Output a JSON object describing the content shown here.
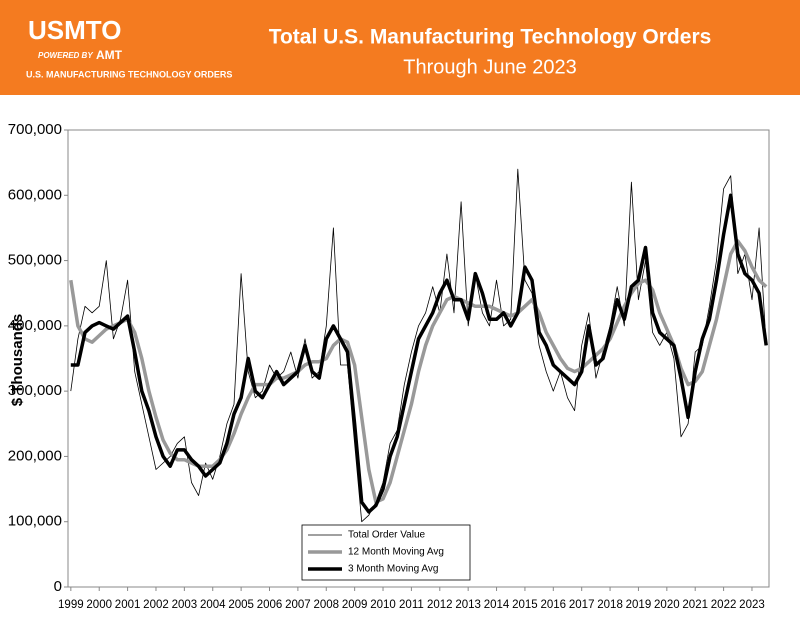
{
  "header": {
    "logo": "USMTO",
    "powered": "POWERED BY",
    "amt": "AMT",
    "tagline": "U.S. MANUFACTURING TECHNOLOGY ORDERS"
  },
  "chart_data": {
    "type": "line",
    "title": "Total U.S. Manufacturing Technology Orders",
    "subtitle": "Through June 2023",
    "y_label": "$ Thousands",
    "legend": "bottom",
    "x": [
      1999,
      1999.25,
      1999.5,
      1999.75,
      2000,
      2000.25,
      2000.5,
      2000.75,
      2001,
      2001.25,
      2001.5,
      2001.75,
      2002,
      2002.25,
      2002.5,
      2002.75,
      2003,
      2003.25,
      2003.5,
      2003.75,
      2004,
      2004.25,
      2004.5,
      2004.75,
      2005,
      2005.25,
      2005.5,
      2005.75,
      2006,
      2006.25,
      2006.5,
      2006.75,
      2007,
      2007.25,
      2007.5,
      2007.75,
      2008,
      2008.25,
      2008.5,
      2008.75,
      2009,
      2009.25,
      2009.5,
      2009.75,
      2010,
      2010.25,
      2010.5,
      2010.75,
      2011,
      2011.25,
      2011.5,
      2011.75,
      2012,
      2012.25,
      2012.5,
      2012.75,
      2013,
      2013.25,
      2013.5,
      2013.75,
      2014,
      2014.25,
      2014.5,
      2014.75,
      2015,
      2015.25,
      2015.5,
      2015.75,
      2016,
      2016.25,
      2016.5,
      2016.75,
      2017,
      2017.25,
      2017.5,
      2017.75,
      2018,
      2018.25,
      2018.5,
      2018.75,
      2019,
      2019.25,
      2019.5,
      2019.75,
      2020,
      2020.25,
      2020.5,
      2020.75,
      2021,
      2021.25,
      2021.5,
      2021.75,
      2022,
      2022.25,
      2022.5,
      2022.75,
      2023,
      2023.25,
      2023.5
    ],
    "series": [
      {
        "name": "Total Order Value",
        "color": "#000000",
        "width": 0.8,
        "values": [
          300000,
          380000,
          430000,
          420000,
          430000,
          500000,
          380000,
          410000,
          470000,
          330000,
          280000,
          230000,
          180000,
          190000,
          200000,
          220000,
          230000,
          160000,
          140000,
          190000,
          165000,
          200000,
          250000,
          280000,
          480000,
          330000,
          290000,
          300000,
          340000,
          320000,
          330000,
          360000,
          320000,
          380000,
          320000,
          330000,
          400000,
          550000,
          340000,
          340000,
          220000,
          100000,
          110000,
          130000,
          160000,
          220000,
          240000,
          310000,
          360000,
          400000,
          420000,
          460000,
          420000,
          510000,
          420000,
          590000,
          400000,
          480000,
          420000,
          400000,
          470000,
          400000,
          410000,
          640000,
          470000,
          450000,
          370000,
          330000,
          300000,
          330000,
          290000,
          270000,
          370000,
          420000,
          320000,
          360000,
          400000,
          460000,
          400000,
          620000,
          440000,
          500000,
          390000,
          370000,
          390000,
          350000,
          230000,
          250000,
          360000,
          370000,
          430000,
          500000,
          610000,
          630000,
          480000,
          510000,
          440000,
          550000,
          370000
        ]
      },
      {
        "name": "12 Month Moving Avg",
        "color": "#999999",
        "width": 3.5,
        "values": [
          470000,
          400000,
          380000,
          375000,
          385000,
          395000,
          400000,
          405000,
          410000,
          390000,
          350000,
          300000,
          260000,
          225000,
          205000,
          195000,
          195000,
          190000,
          185000,
          185000,
          185000,
          195000,
          210000,
          235000,
          265000,
          290000,
          310000,
          310000,
          310000,
          320000,
          320000,
          325000,
          330000,
          340000,
          345000,
          345000,
          350000,
          370000,
          380000,
          375000,
          340000,
          260000,
          180000,
          130000,
          135000,
          160000,
          200000,
          240000,
          280000,
          330000,
          370000,
          400000,
          420000,
          440000,
          445000,
          440000,
          435000,
          430000,
          430000,
          430000,
          425000,
          420000,
          415000,
          420000,
          430000,
          440000,
          420000,
          390000,
          370000,
          350000,
          335000,
          330000,
          335000,
          345000,
          355000,
          365000,
          380000,
          405000,
          430000,
          450000,
          465000,
          470000,
          455000,
          420000,
          395000,
          370000,
          335000,
          310000,
          315000,
          330000,
          370000,
          410000,
          460000,
          510000,
          530000,
          515000,
          490000,
          470000,
          460000
        ]
      },
      {
        "name": "3 Month Moving Avg",
        "color": "#000000",
        "width": 3.5,
        "values": [
          340000,
          340000,
          390000,
          400000,
          405000,
          400000,
          395000,
          405000,
          415000,
          360000,
          300000,
          270000,
          230000,
          200000,
          185000,
          210000,
          210000,
          195000,
          185000,
          170000,
          180000,
          190000,
          220000,
          265000,
          290000,
          350000,
          300000,
          290000,
          310000,
          330000,
          310000,
          320000,
          330000,
          370000,
          330000,
          320000,
          380000,
          400000,
          380000,
          360000,
          250000,
          130000,
          115000,
          125000,
          150000,
          200000,
          230000,
          280000,
          330000,
          380000,
          400000,
          420000,
          450000,
          470000,
          440000,
          440000,
          410000,
          480000,
          450000,
          410000,
          410000,
          420000,
          400000,
          420000,
          490000,
          470000,
          390000,
          370000,
          340000,
          330000,
          320000,
          310000,
          330000,
          400000,
          340000,
          350000,
          390000,
          440000,
          410000,
          460000,
          470000,
          520000,
          420000,
          390000,
          380000,
          370000,
          320000,
          260000,
          330000,
          380000,
          410000,
          470000,
          540000,
          600000,
          510000,
          480000,
          470000,
          450000,
          370000
        ]
      }
    ],
    "xlim": [
      1998.9,
      2023.6
    ],
    "xticks": [
      1999,
      2000,
      2001,
      2002,
      2003,
      2004,
      2005,
      2006,
      2007,
      2008,
      2009,
      2010,
      2011,
      2012,
      2013,
      2014,
      2015,
      2016,
      2017,
      2018,
      2019,
      2020,
      2021,
      2022,
      2023
    ],
    "ylim": [
      0,
      700000
    ],
    "yticks": [
      0,
      {
        "value": 100000,
        "label": "100,000"
      },
      {
        "value": 200000,
        "label": "200,000"
      },
      {
        "value": 300000,
        "label": "300,000"
      },
      {
        "value": 400000,
        "label": "400,000"
      },
      {
        "value": 500000,
        "label": "500,000"
      },
      {
        "value": 600000,
        "label": "600,000"
      },
      {
        "value": 700000,
        "label": "700,000"
      }
    ],
    "grid": false
  }
}
